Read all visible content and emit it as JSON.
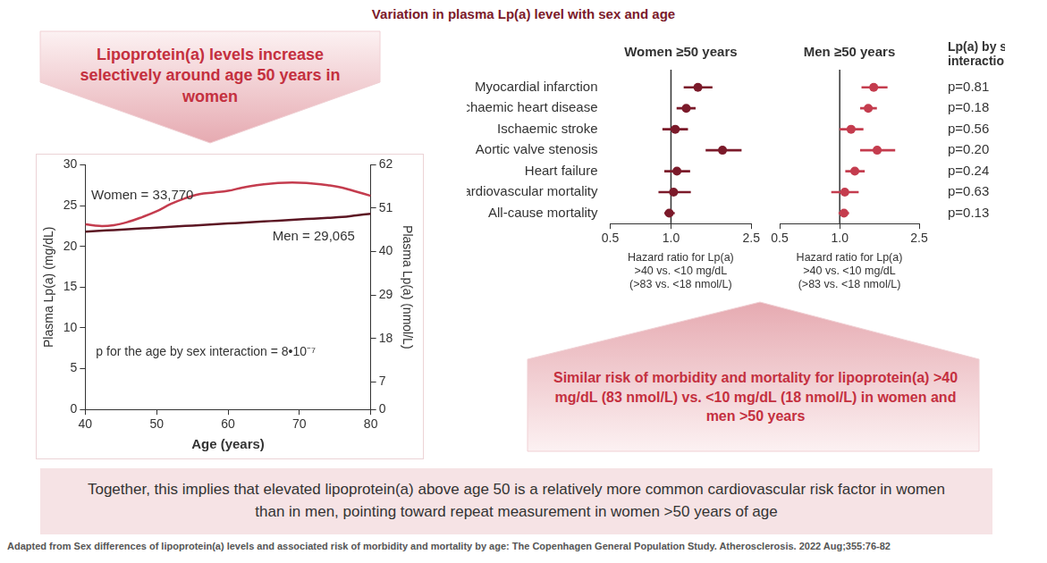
{
  "title": "Variation in plasma Lp(a) level with sex and age",
  "callouts": [
    "Lipoprotein(a) levels increase selectively around age 50 years in women",
    "Similar risk of morbidity and mortality for lipoprotein(a) >40 mg/dL (83 nmol/L) vs. <10 mg/dL (18 nmol/L) in women and men >50 years"
  ],
  "conclusion": "Together, this implies that elevated lipoprotein(a) above age 50 is a relatively more common cardiovascular risk factor in women than in men, pointing toward repeat measurement in women >50 years of age",
  "source": "Adapted from Sex differences of lipoprotein(a) levels and associated risk of morbidity and mortality by age: The Copenhagen General Population Study. Atherosclerosis. 2022 Aug;355:76-82",
  "interaction": {
    "title": "Lp(a) by sex interaction",
    "labels": [
      "p=0.81",
      "p=0.18",
      "p=0.56",
      "p=0.20",
      "p=0.24",
      "p=0.63",
      "p=0.13"
    ]
  },
  "chart_data": [
    {
      "type": "line",
      "x": [
        40,
        42,
        44,
        46,
        48,
        50,
        52,
        54,
        56,
        58,
        60,
        62,
        64,
        66,
        68,
        70,
        72,
        74,
        76,
        78,
        80
      ],
      "series": [
        {
          "name": "Women = 33,770",
          "color": "#c43c4e",
          "values": [
            22.7,
            22.5,
            22.6,
            23.0,
            23.6,
            24.3,
            25.2,
            25.9,
            26.4,
            26.6,
            26.8,
            27.2,
            27.5,
            27.7,
            27.8,
            27.8,
            27.7,
            27.5,
            27.2,
            26.7,
            26.2
          ]
        },
        {
          "name": "Men = 29,065",
          "color": "#5c1623",
          "values": [
            21.8,
            21.9,
            22.0,
            22.1,
            22.2,
            22.3,
            22.4,
            22.5,
            22.6,
            22.7,
            22.8,
            22.9,
            23.0,
            23.1,
            23.2,
            23.3,
            23.4,
            23.5,
            23.6,
            23.8,
            24.0
          ]
        }
      ],
      "x_label": "Age (years)",
      "y_label": "Plasma Lp(a) (mg/dL)",
      "y2_label": "Plasma Lp(a) (nmol/L)",
      "xlim": [
        40,
        80
      ],
      "xticks": [
        40,
        50,
        60,
        70,
        80
      ],
      "ylim": [
        0,
        30
      ],
      "yticks": [
        0,
        5,
        10,
        15,
        20,
        25,
        30
      ],
      "y2lim": [
        0,
        62
      ],
      "y2ticks": [
        0,
        7,
        18,
        29,
        40,
        51,
        62
      ],
      "grid": false,
      "annotations": [
        "p for the age by sex interaction = 8•10⁻⁷"
      ]
    },
    {
      "type": "forest",
      "title": "Women ≥50 years",
      "categories": [
        "Myocardial infarction",
        "Ischaemic heart disease",
        "Ischaemic stroke",
        "Aortic valve stenosis",
        "Heart failure",
        "Cardiovascular mortality",
        "All-cause mortality"
      ],
      "values": [
        1.36,
        1.19,
        1.05,
        1.8,
        1.07,
        1.03,
        0.98
      ],
      "lower": [
        1.16,
        1.07,
        0.91,
        1.49,
        0.93,
        0.87,
        0.93
      ],
      "upper": [
        1.6,
        1.32,
        1.21,
        2.23,
        1.24,
        1.25,
        1.04
      ],
      "reference": 1,
      "color": "#7b1a2a",
      "marker": "circle",
      "x_label": [
        "Hazard ratio for Lp(a)",
        ">40 vs. <10 mg/dL",
        "(>83 vs. <18 nmol/L)"
      ],
      "log": "x",
      "xlim": [
        0.5,
        2.5
      ],
      "xticks": [
        0.5,
        {
          "value": 1,
          "label": "1.0"
        },
        2.5
      ],
      "grid": false
    },
    {
      "type": "forest",
      "title": "Men ≥50 years",
      "categories": [
        "Myocardial infarction",
        "Ischaemic heart disease",
        "Ischaemic stroke",
        "Aortic valve stenosis",
        "Heart failure",
        "Cardiovascular mortality",
        "All-cause mortality"
      ],
      "values": [
        1.48,
        1.39,
        1.14,
        1.54,
        1.19,
        1.06,
        1.05
      ],
      "lower": [
        1.29,
        1.27,
        1.0,
        1.27,
        1.07,
        0.91,
        0.99
      ],
      "upper": [
        1.73,
        1.53,
        1.31,
        1.89,
        1.33,
        1.24,
        1.11
      ],
      "reference": 1,
      "color": "#c43c4e",
      "marker": "circle",
      "x_label": [
        "Hazard ratio for Lp(a)",
        ">40 vs. <10 mg/dL",
        "(>83 vs. <18 nmol/L)"
      ],
      "log": "x",
      "xlim": [
        0.5,
        2.5
      ],
      "xticks": [
        0.5,
        {
          "value": 1,
          "label": "1.0"
        },
        2.5
      ],
      "grid": false,
      "tick_labels": "x"
    }
  ]
}
